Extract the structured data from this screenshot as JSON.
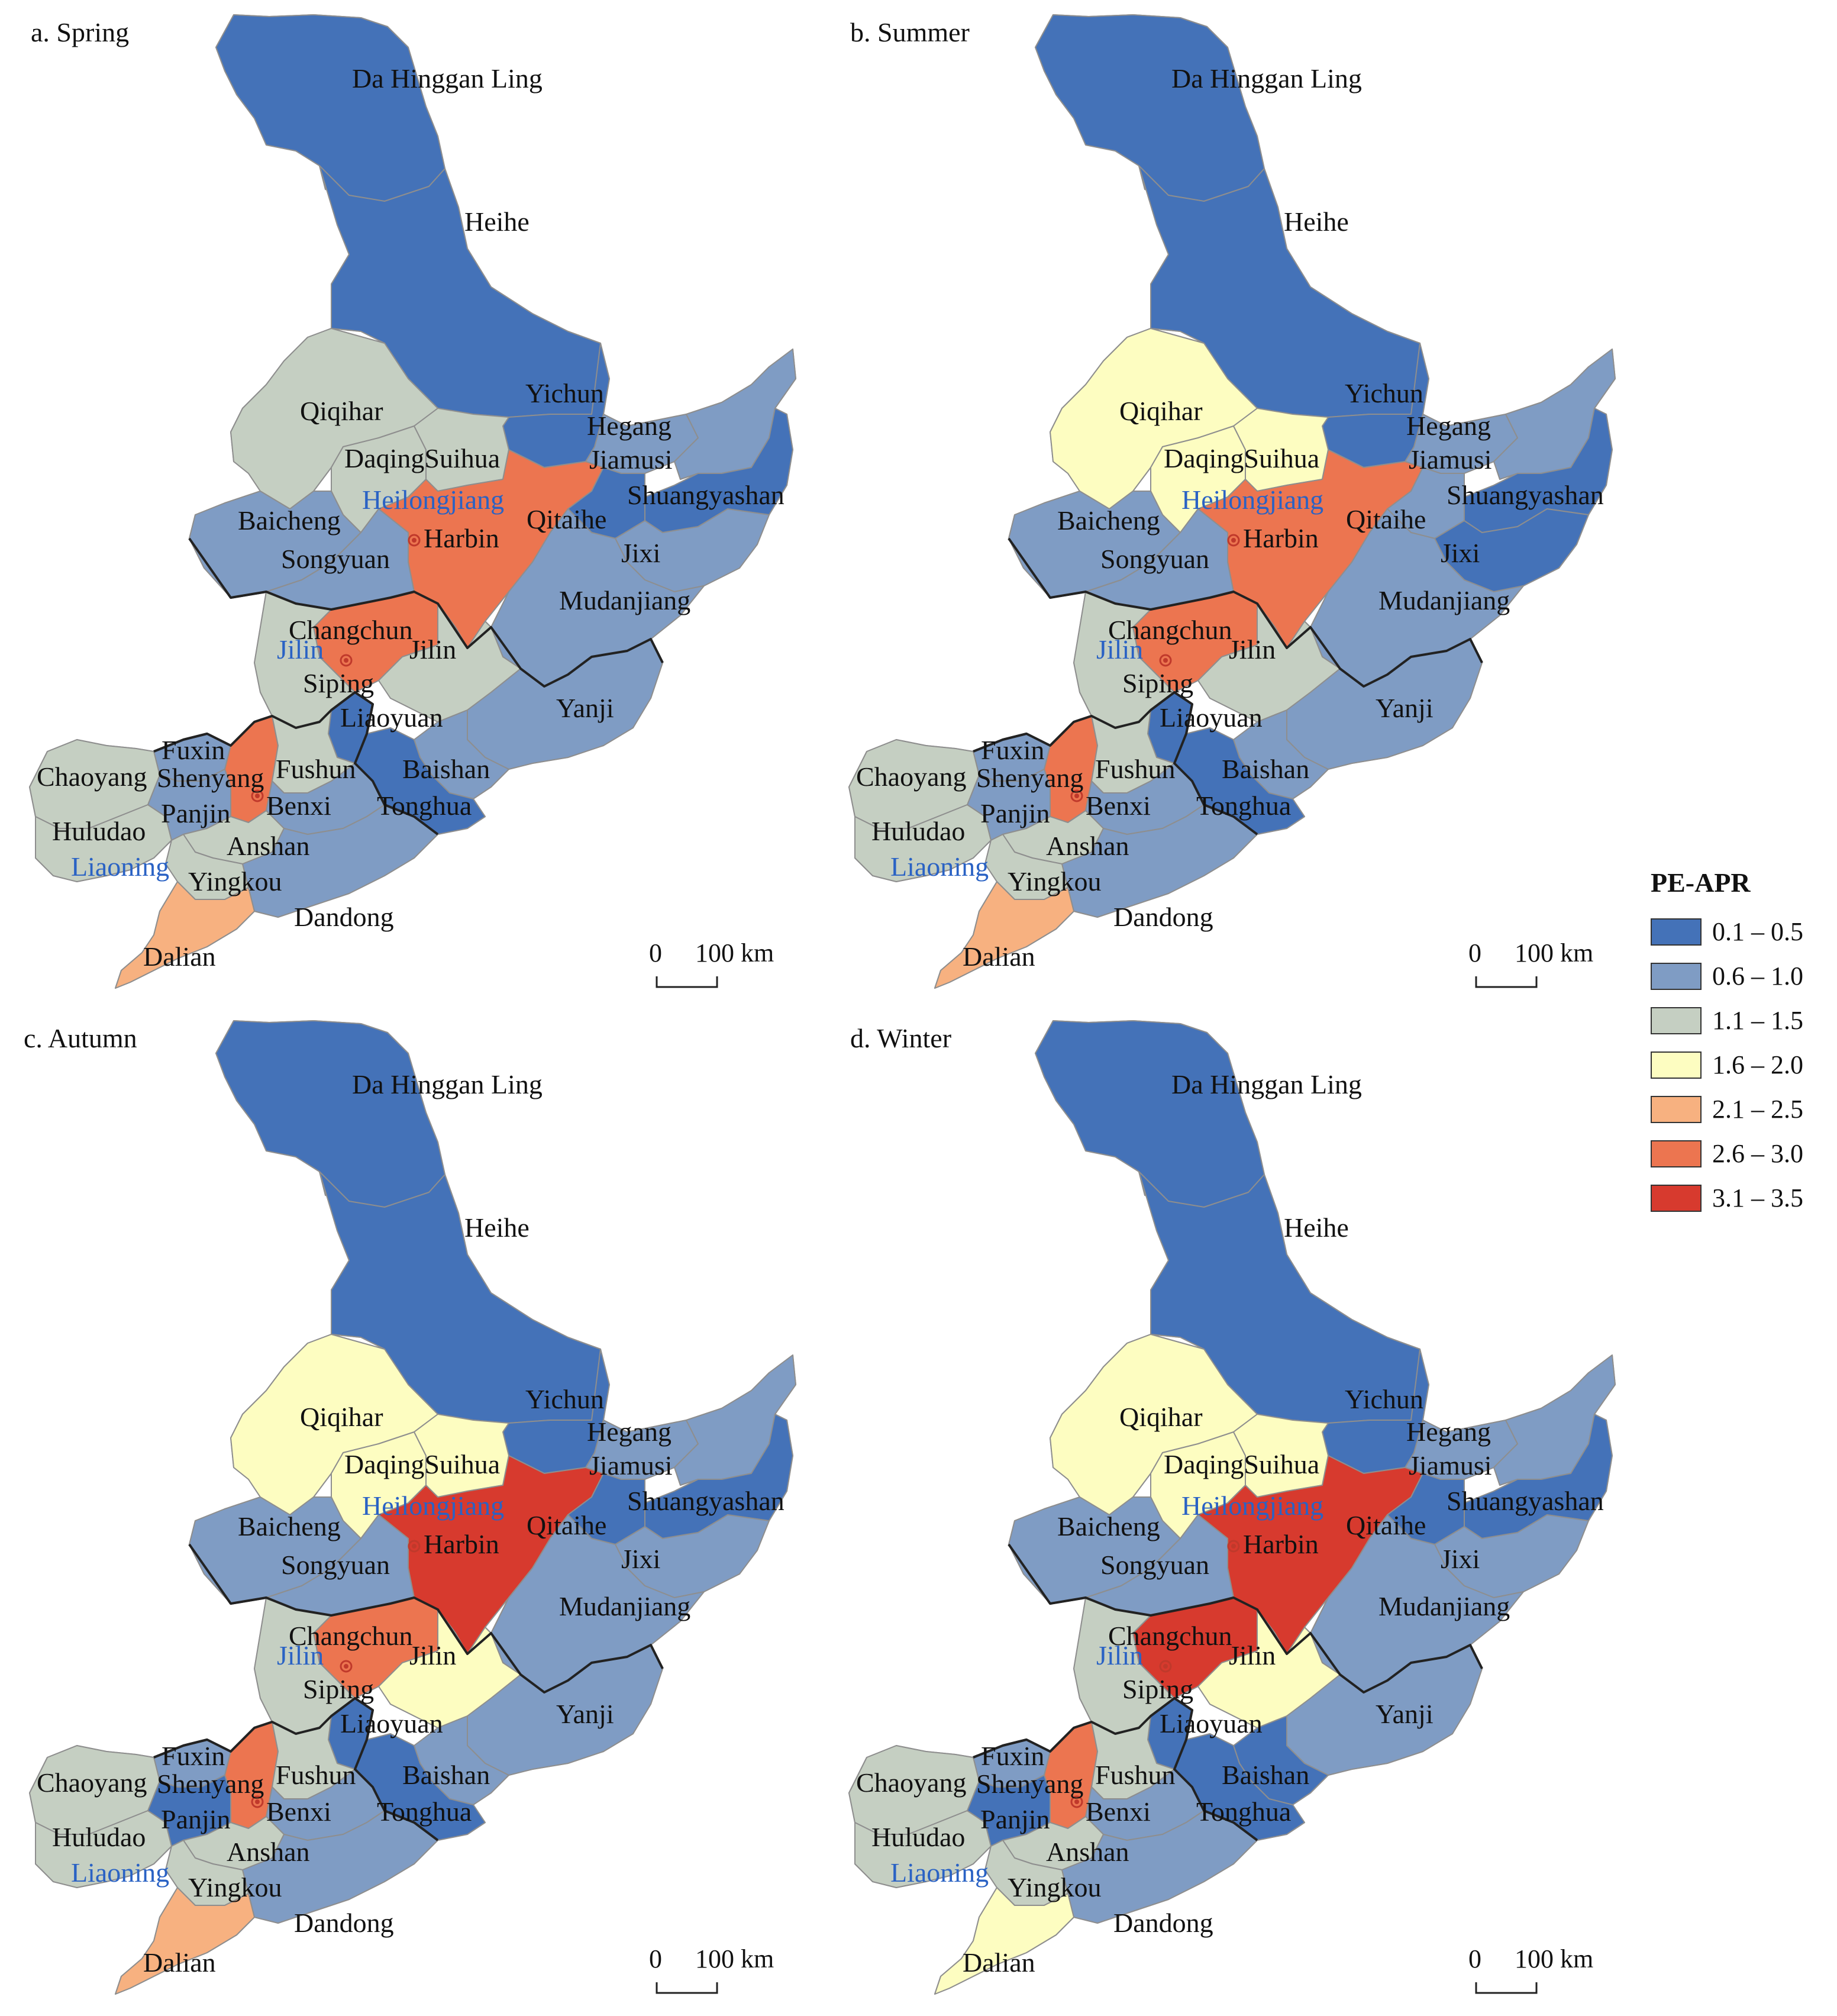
{
  "panels": [
    {
      "id": "spring",
      "title": "a. Spring",
      "fills": {
        "DaHingganLing": "c1",
        "Heihe": "c1",
        "Yichun": "c1",
        "Qiqihar": "c3",
        "Daqing": "c3",
        "Suihua": "c3",
        "Harbin": "c6",
        "Hegang": "c2",
        "Jiamusi": "c2",
        "Shuangyashan": "c1",
        "Qitaihe": "c1",
        "Jixi": "c2",
        "Mudanjiang": "c2",
        "Baicheng": "c2",
        "Songyuan": "c2",
        "Changchun": "c6",
        "Jilin": "c3",
        "Siping": "c3",
        "Liaoyuan": "c1",
        "Yanji": "c2",
        "Baishan": "c2",
        "Tonghua": "c1",
        "Chaoyang": "c3",
        "Fuxin": "c2",
        "Shenyang": "c6",
        "Fushun": "c3",
        "Benxi": "c2",
        "Huludao": "c3",
        "Panjin": "c2",
        "Anshan": "c3",
        "Yingkou": "c3",
        "Dandong": "c2",
        "Dalian": "c5"
      }
    },
    {
      "id": "summer",
      "title": "b. Summer",
      "fills": {
        "DaHingganLing": "c1",
        "Heihe": "c1",
        "Yichun": "c1",
        "Qiqihar": "c4",
        "Daqing": "c4",
        "Suihua": "c4",
        "Harbin": "c6",
        "Hegang": "c2",
        "Jiamusi": "c2",
        "Shuangyashan": "c1",
        "Qitaihe": "c2",
        "Jixi": "c1",
        "Mudanjiang": "c2",
        "Baicheng": "c2",
        "Songyuan": "c2",
        "Changchun": "c6",
        "Jilin": "c3",
        "Siping": "c3",
        "Liaoyuan": "c1",
        "Yanji": "c2",
        "Baishan": "c2",
        "Tonghua": "c1",
        "Chaoyang": "c3",
        "Fuxin": "c2",
        "Shenyang": "c6",
        "Fushun": "c3",
        "Benxi": "c2",
        "Huludao": "c3",
        "Panjin": "c2",
        "Anshan": "c3",
        "Yingkou": "c3",
        "Dandong": "c2",
        "Dalian": "c5"
      }
    },
    {
      "id": "autumn",
      "title": "c. Autumn",
      "fills": {
        "DaHingganLing": "c1",
        "Heihe": "c1",
        "Yichun": "c1",
        "Qiqihar": "c4",
        "Daqing": "c4",
        "Suihua": "c4",
        "Harbin": "c7",
        "Hegang": "c2",
        "Jiamusi": "c2",
        "Shuangyashan": "c1",
        "Qitaihe": "c1",
        "Jixi": "c2",
        "Mudanjiang": "c2",
        "Baicheng": "c2",
        "Songyuan": "c2",
        "Changchun": "c6",
        "Jilin": "c4",
        "Siping": "c3",
        "Liaoyuan": "c1",
        "Yanji": "c2",
        "Baishan": "c2",
        "Tonghua": "c1",
        "Chaoyang": "c3",
        "Fuxin": "c2",
        "Shenyang": "c6",
        "Fushun": "c3",
        "Benxi": "c2",
        "Huludao": "c3",
        "Panjin": "c1",
        "Anshan": "c3",
        "Yingkou": "c3",
        "Dandong": "c2",
        "Dalian": "c5"
      }
    },
    {
      "id": "winter",
      "title": "d. Winter",
      "fills": {
        "DaHingganLing": "c1",
        "Heihe": "c1",
        "Yichun": "c1",
        "Qiqihar": "c4",
        "Daqing": "c4",
        "Suihua": "c4",
        "Harbin": "c7",
        "Hegang": "c2",
        "Jiamusi": "c2",
        "Shuangyashan": "c1",
        "Qitaihe": "c1",
        "Jixi": "c2",
        "Mudanjiang": "c2",
        "Baicheng": "c2",
        "Songyuan": "c2",
        "Changchun": "c7",
        "Jilin": "c4",
        "Siping": "c3",
        "Liaoyuan": "c1",
        "Yanji": "c2",
        "Baishan": "c1",
        "Tonghua": "c1",
        "Chaoyang": "c3",
        "Fuxin": "c2",
        "Shenyang": "c6",
        "Fushun": "c3",
        "Benxi": "c2",
        "Huludao": "c3",
        "Panjin": "c1",
        "Anshan": "c3",
        "Yingkou": "c3",
        "Dandong": "c2",
        "Dalian": "c4"
      }
    }
  ],
  "city_labels": {
    "DaHingganLing": "Da Hinggan Ling",
    "Heihe": "Heihe",
    "Yichun": "Yichun",
    "Qiqihar": "Qiqihar",
    "DaqingSuihua": "DaqingSuihua",
    "Hegang": "Hegang",
    "Jiamusi": "Jiamusi",
    "Shuangyashan": "Shuangyashan",
    "Baicheng": "Baicheng",
    "Harbin": "Harbin",
    "Qitaihe": "Qitaihe",
    "Songyuan": "Songyuan",
    "Jixi": "Jixi",
    "Mudanjiang": "Mudanjiang",
    "Changchun": "Changchun",
    "Jilin": "Jilin",
    "Siping": "Siping",
    "Liaoyuan": "Liaoyuan",
    "Yanji": "Yanji",
    "Fuxin": "Fuxin",
    "Chaoyang": "Chaoyang",
    "Shenyang": "Shenyang",
    "Fushun": "Fushun",
    "Baishan": "Baishan",
    "Panjin": "Panjin",
    "Benxi": "Benxi",
    "Tonghua": "Tonghua",
    "Huludao": "Huludao",
    "Anshan": "Anshan",
    "Yingkou": "Yingkou",
    "Dandong": "Dandong",
    "Dalian": "Dalian"
  },
  "province_labels": {
    "Heilongjiang": "Heilongjiang",
    "Jilin": "Jilin",
    "Liaoning": "Liaoning"
  },
  "scale_bar": {
    "zero": "0",
    "distance": "100 km"
  },
  "legend": {
    "title": "PE-APR",
    "classes": [
      {
        "key": "c1",
        "label": "0.1 – 0.5",
        "color": "#4472b8"
      },
      {
        "key": "c2",
        "label": "0.6 – 1.0",
        "color": "#7f9cc4"
      },
      {
        "key": "c3",
        "label": "1.1 – 1.5",
        "color": "#c5cfc2"
      },
      {
        "key": "c4",
        "label": "1.6 – 2.0",
        "color": "#fdfdc1"
      },
      {
        "key": "c5",
        "label": "2.1 – 2.5",
        "color": "#f7b180"
      },
      {
        "key": "c6",
        "label": "2.6 – 3.0",
        "color": "#ec7550"
      },
      {
        "key": "c7",
        "label": "3.1 – 3.5",
        "color": "#d73a2e"
      }
    ]
  }
}
